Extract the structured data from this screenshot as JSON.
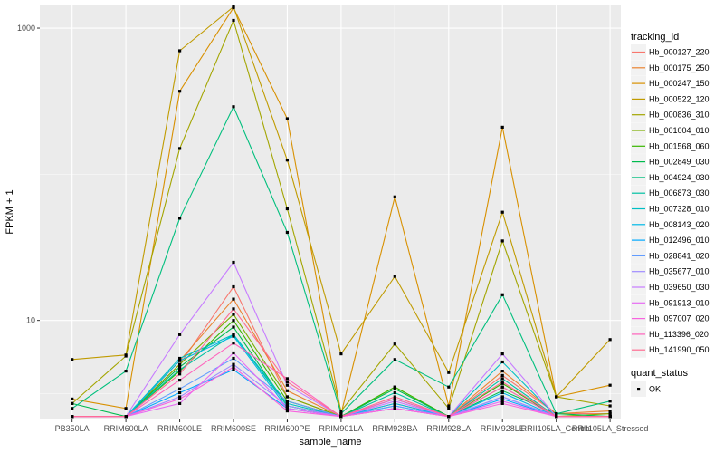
{
  "chart_data": {
    "type": "line",
    "xlabel": "sample_name",
    "ylabel": "FPKM + 1",
    "y_scale": "log10",
    "ylim": [
      2.1,
      1450
    ],
    "y_ticks": [
      10,
      1000
    ],
    "y_tick_labels": [
      "10",
      "1000"
    ],
    "grid": true,
    "legend_position": "right",
    "categories": [
      "PB350LA",
      "RRIM600LA",
      "RRIM600LE",
      "RRIM600SE",
      "RRIM600PE",
      "RRIM901LA",
      "RRIM928BA",
      "RRIM928LA",
      "RRIM928LE",
      "RRII105LA_Control",
      "RRII105LA_Stressed"
    ],
    "color_legend": {
      "title": "tracking_id",
      "entries": [
        "Hb_000127_220",
        "Hb_000175_250",
        "Hb_000247_150",
        "Hb_000522_120",
        "Hb_000836_310",
        "Hb_001004_010",
        "Hb_001568_060",
        "Hb_002849_030",
        "Hb_004924_030",
        "Hb_006873_030",
        "Hb_007328_010",
        "Hb_008143_020",
        "Hb_012496_010",
        "Hb_028841_020",
        "Hb_035677_010",
        "Hb_039650_030",
        "Hb_091913_010",
        "Hb_097007_020",
        "Hb_113396_020",
        "Hb_141990_050"
      ]
    },
    "shape_legend": {
      "title": "quant_status",
      "entries": [
        "OK"
      ]
    },
    "series": [
      {
        "name": "Hb_000127_220",
        "color": "#F8766D",
        "values": [
          2.2,
          2.2,
          5.0,
          17.0,
          3.0,
          2.2,
          2.5,
          2.2,
          4.2,
          2.3,
          2.3
        ]
      },
      {
        "name": "Hb_000175_250",
        "color": "#EA8331",
        "values": [
          2.2,
          2.2,
          5.3,
          14.0,
          3.3,
          2.2,
          2.7,
          2.2,
          4.5,
          2.3,
          2.4
        ]
      },
      {
        "name": "Hb_000247_150",
        "color": "#D89000",
        "values": [
          2.9,
          2.5,
          370,
          1380,
          240,
          2.3,
          70,
          2.6,
          210,
          3.0,
          3.6
        ]
      },
      {
        "name": "Hb_000522_120",
        "color": "#C09B00",
        "values": [
          5.4,
          5.8,
          700,
          1400,
          125,
          5.9,
          20,
          4.4,
          55,
          3.0,
          7.4
        ]
      },
      {
        "name": "Hb_000836_310",
        "color": "#A3A500",
        "values": [
          2.7,
          5.7,
          150,
          1130,
          58,
          2.4,
          6.9,
          2.5,
          35,
          3.0,
          2.6
        ]
      },
      {
        "name": "Hb_001004_010",
        "color": "#7CAE00",
        "values": [
          2.2,
          2.2,
          5.0,
          11.0,
          3.0,
          2.2,
          3.5,
          2.2,
          3.5,
          2.2,
          2.3
        ]
      },
      {
        "name": "Hb_001568_060",
        "color": "#39B600",
        "values": [
          2.2,
          2.2,
          4.5,
          10.0,
          2.8,
          2.2,
          3.5,
          2.2,
          3.7,
          2.2,
          2.2
        ]
      },
      {
        "name": "Hb_002849_030",
        "color": "#00BB4E",
        "values": [
          2.7,
          2.2,
          4.8,
          9.0,
          2.6,
          2.2,
          3.4,
          2.2,
          3.3,
          2.3,
          2.2
        ]
      },
      {
        "name": "Hb_004924_030",
        "color": "#00BF7D",
        "values": [
          2.5,
          4.5,
          50,
          290,
          40,
          2.3,
          5.4,
          3.5,
          15,
          2.3,
          2.8
        ]
      },
      {
        "name": "Hb_006873_030",
        "color": "#00C1A3",
        "values": [
          2.2,
          2.2,
          4.6,
          8.0,
          2.6,
          2.2,
          3.2,
          2.2,
          4.0,
          2.2,
          2.2
        ]
      },
      {
        "name": "Hb_007328_010",
        "color": "#00BFC4",
        "values": [
          2.2,
          2.2,
          5.5,
          8.0,
          2.7,
          2.2,
          2.9,
          2.2,
          5.2,
          2.2,
          2.2
        ]
      },
      {
        "name": "Hb_008143_020",
        "color": "#00B8E7",
        "values": [
          2.2,
          2.2,
          5.3,
          7.8,
          2.5,
          2.2,
          2.7,
          2.2,
          3.2,
          2.2,
          2.2
        ]
      },
      {
        "name": "Hb_012496_010",
        "color": "#00A9FF",
        "values": [
          2.2,
          2.2,
          3.2,
          4.6,
          2.5,
          2.2,
          2.6,
          2.2,
          2.9,
          2.2,
          2.2
        ]
      },
      {
        "name": "Hb_028841_020",
        "color": "#619CFF",
        "values": [
          2.2,
          2.2,
          3.4,
          5.5,
          2.8,
          2.2,
          2.6,
          2.2,
          3.0,
          2.2,
          2.2
        ]
      },
      {
        "name": "Hb_035677_010",
        "color": "#9F8CFF",
        "values": [
          2.2,
          2.2,
          3.0,
          5.0,
          2.6,
          2.2,
          2.5,
          2.2,
          3.0,
          2.2,
          2.2
        ]
      },
      {
        "name": "Hb_039650_030",
        "color": "#C77CFF",
        "values": [
          2.2,
          2.2,
          8.0,
          25.0,
          3.6,
          2.2,
          2.8,
          2.2,
          5.9,
          2.2,
          2.2
        ]
      },
      {
        "name": "Hb_091913_010",
        "color": "#E76BF3",
        "values": [
          2.2,
          2.2,
          2.7,
          6.0,
          2.5,
          2.2,
          2.5,
          2.2,
          2.8,
          2.2,
          2.2
        ]
      },
      {
        "name": "Hb_097007_020",
        "color": "#F863DF",
        "values": [
          2.2,
          2.2,
          2.9,
          4.8,
          2.4,
          2.2,
          2.5,
          2.2,
          2.7,
          2.2,
          2.2
        ]
      },
      {
        "name": "Hb_113396_020",
        "color": "#FF62BC",
        "values": [
          2.2,
          2.2,
          3.9,
          7.0,
          4.0,
          2.2,
          2.9,
          2.2,
          3.5,
          2.2,
          2.2
        ]
      },
      {
        "name": "Hb_141990_050",
        "color": "#FF6C91",
        "values": [
          2.2,
          2.2,
          4.3,
          12.0,
          3.8,
          2.2,
          3.0,
          2.2,
          3.8,
          2.2,
          2.2
        ]
      }
    ]
  }
}
